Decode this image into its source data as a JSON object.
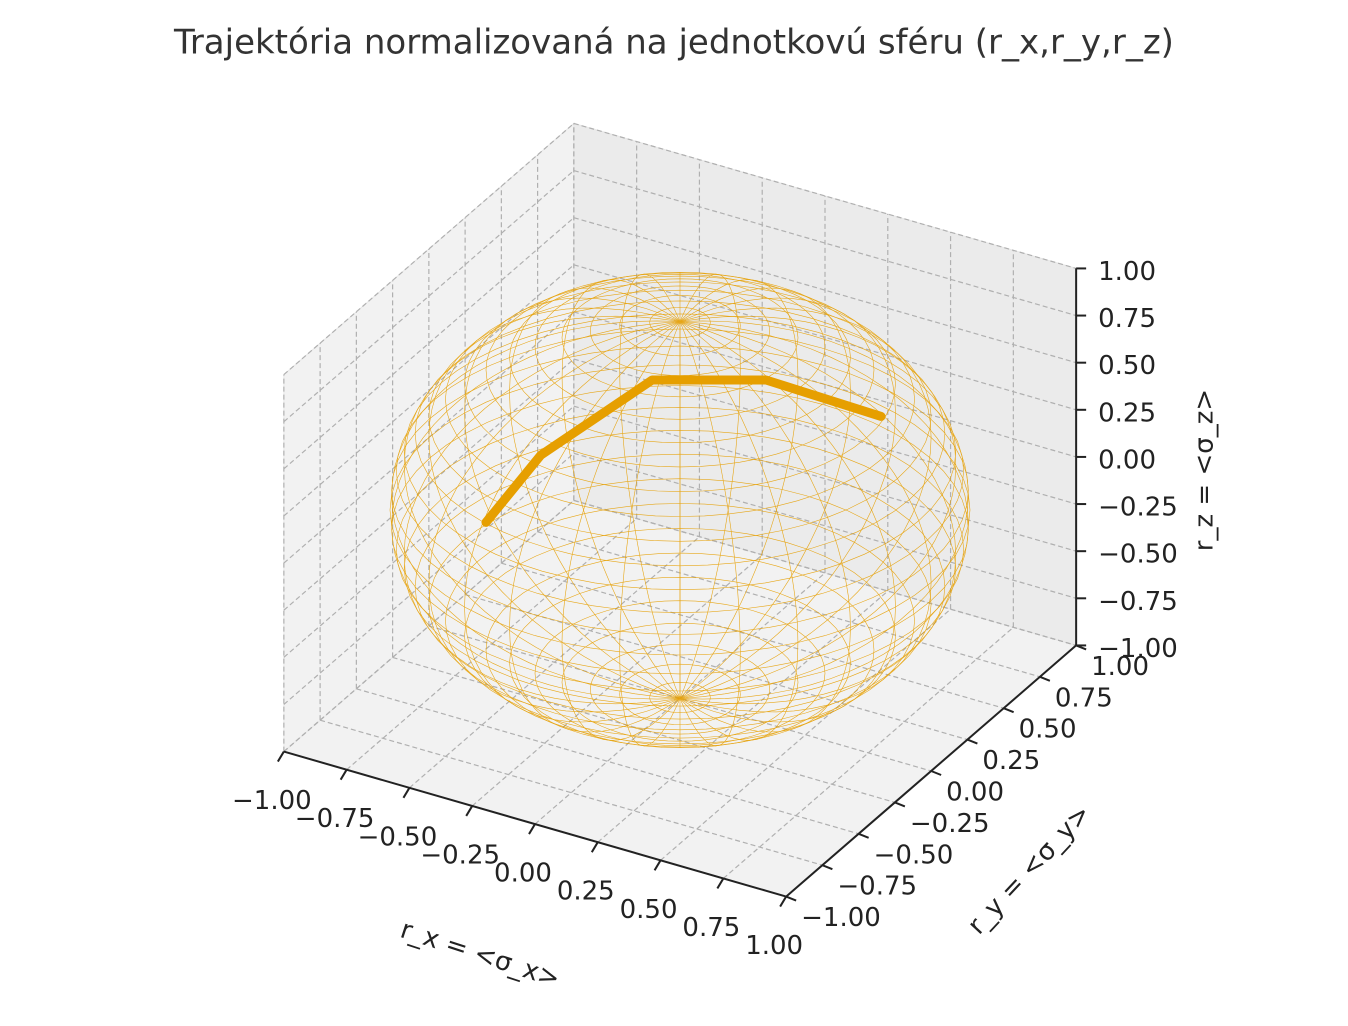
{
  "chart_data": {
    "type": "line3d",
    "title": "Trajektória normalizovaná na jednotkovú sféru (r_x,r_y,r_z)",
    "xlabel": "r_x = <σ_x>",
    "ylabel": "r_y = <σ_y>",
    "zlabel": "r_z = <σ_z>",
    "xlim": [
      -1,
      1
    ],
    "ylim": [
      -1,
      1
    ],
    "zlim": [
      -1,
      1
    ],
    "xticks": [
      {
        "value": -1,
        "label": "−1.00"
      },
      {
        "value": -0.75,
        "label": "−0.75"
      },
      {
        "value": -0.5,
        "label": "−0.50"
      },
      {
        "value": -0.25,
        "label": "−0.25"
      },
      {
        "value": 0,
        "label": "0.00"
      },
      {
        "value": 0.25,
        "label": "0.25"
      },
      {
        "value": 0.5,
        "label": "0.50"
      },
      {
        "value": 0.75,
        "label": "0.75"
      },
      {
        "value": 1,
        "label": "1.00"
      }
    ],
    "yticks": [
      {
        "value": -1,
        "label": "−1.00"
      },
      {
        "value": -0.75,
        "label": "−0.75"
      },
      {
        "value": -0.5,
        "label": "−0.50"
      },
      {
        "value": -0.25,
        "label": "−0.25"
      },
      {
        "value": 0,
        "label": "0.00"
      },
      {
        "value": 0.25,
        "label": "0.25"
      },
      {
        "value": 0.5,
        "label": "0.50"
      },
      {
        "value": 0.75,
        "label": "0.75"
      },
      {
        "value": 1,
        "label": "1.00"
      }
    ],
    "zticks": [
      {
        "value": -1,
        "label": "−1.00"
      },
      {
        "value": -0.75,
        "label": "−0.75"
      },
      {
        "value": -0.5,
        "label": "−0.50"
      },
      {
        "value": -0.25,
        "label": "−0.25"
      },
      {
        "value": 0,
        "label": "0.00"
      },
      {
        "value": 0.25,
        "label": "0.25"
      },
      {
        "value": 0.5,
        "label": "0.50"
      },
      {
        "value": 0.75,
        "label": "0.75"
      },
      {
        "value": 1,
        "label": "1.00"
      }
    ],
    "grid": true,
    "color": "#e69f00",
    "x": [
      -0.27,
      -0.15,
      0.08,
      0.4,
      0.72
    ],
    "y": [
      -0.87,
      -0.7,
      -0.33,
      -0.1,
      0.14
    ],
    "z": [
      0.41,
      0.7,
      0.94,
      0.91,
      0.68
    ]
  }
}
